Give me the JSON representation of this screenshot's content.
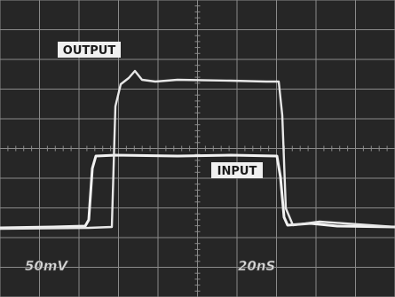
{
  "labels": {
    "output": "OUTPUT",
    "input": "INPUT"
  },
  "scale": {
    "volts_per_div": "50mV",
    "time_per_div": "20nS"
  }
}
